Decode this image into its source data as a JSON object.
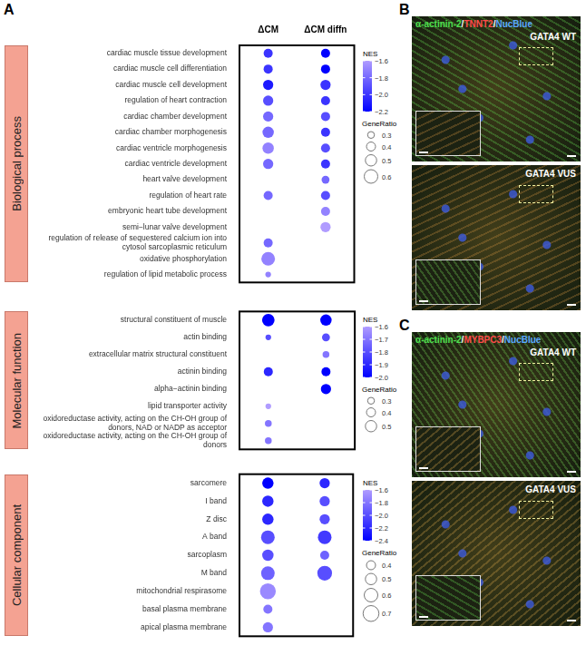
{
  "panel_a": {
    "letter": "A"
  },
  "chart_data": [
    {
      "type": "bubble",
      "title": "Biological process",
      "categories": [
        "cardiac muscle tissue development",
        "cardiac muscle cell differentiation",
        "cardiac muscle cell development",
        "regulation of heart contraction",
        "cardiac chamber development",
        "cardiac chamber morphogenesis",
        "cardiac ventricle morphogenesis",
        "cardiac ventricle development",
        "heart valve development",
        "regulation of heart rate",
        "embryonic heart tube development",
        "semi−lunar valve development",
        "regulation of release of sequestered calcium ion into cytosol sarcoplasmic reticulum",
        "oxidative phosphorylation",
        "regulation of lipid metabolic process"
      ],
      "series": [
        {
          "name": "ΔCM",
          "values": [
            -2.0,
            -2.0,
            -2.1,
            -1.9,
            -1.8,
            -1.8,
            -1.7,
            -1.8,
            null,
            -1.8,
            null,
            null,
            -1.8,
            -1.7,
            -1.7
          ],
          "gene_ratio": [
            0.4,
            0.4,
            0.45,
            0.45,
            0.45,
            0.5,
            0.5,
            0.45,
            null,
            0.4,
            null,
            null,
            0.4,
            0.6,
            0.25
          ]
        },
        {
          "name": "ΔCM diffn",
          "values": [
            -2.2,
            -2.2,
            -2.0,
            -2.0,
            -1.9,
            -2.0,
            -1.9,
            -2.0,
            -1.8,
            -1.9,
            -1.7,
            -1.6,
            null,
            null,
            null
          ],
          "gene_ratio": [
            0.4,
            0.4,
            0.45,
            0.4,
            0.4,
            0.4,
            0.4,
            0.4,
            0.35,
            0.4,
            0.4,
            0.45,
            null,
            null,
            null
          ]
        }
      ],
      "nes_colorbar": {
        "title": "NES",
        "range": [
          -2.2,
          -1.6
        ],
        "ticks": [
          {
            "value": -1.6,
            "label": "−1.6"
          },
          {
            "value": -1.8,
            "label": "−1.8"
          },
          {
            "value": -2.0,
            "label": "−2.0"
          },
          {
            "value": -2.2,
            "label": "−2.2"
          }
        ]
      },
      "gene_ratio_legend": {
        "title": "GeneRatio",
        "values": [
          0.3,
          0.4,
          0.5,
          0.6
        ]
      }
    },
    {
      "type": "bubble",
      "title": "Molecular function",
      "categories": [
        "structural constituent of muscle",
        "actin binding",
        "extracellular matrix structural constituent",
        "actinin binding",
        "alpha−actinin binding",
        "lipid transporter activity",
        "oxidoreductase activity, acting on the CH-OH group of donors, NAD or NADP as acceptor",
        "oxidoreductase activity, acting on the CH-OH group of donors"
      ],
      "series": [
        {
          "name": "ΔCM",
          "values": [
            -2.0,
            -1.8,
            null,
            -1.9,
            null,
            -1.6,
            -1.7,
            -1.7
          ],
          "gene_ratio": [
            0.55,
            0.25,
            null,
            0.4,
            null,
            0.25,
            0.3,
            0.3
          ]
        },
        {
          "name": "ΔCM diffn",
          "values": [
            -2.0,
            -1.8,
            -1.7,
            -2.0,
            -2.0,
            null,
            null,
            null
          ],
          "gene_ratio": [
            0.5,
            0.35,
            0.3,
            0.4,
            0.45,
            null,
            null,
            null
          ]
        }
      ],
      "nes_colorbar": {
        "title": "NES",
        "range": [
          -2.0,
          -1.6
        ],
        "ticks": [
          {
            "value": -1.6,
            "label": "−1.6"
          },
          {
            "value": -1.7,
            "label": "−1.7"
          },
          {
            "value": -1.8,
            "label": "−1.8"
          },
          {
            "value": -1.9,
            "label": "−1.9"
          },
          {
            "value": -2.0,
            "label": "−2.0"
          }
        ]
      },
      "gene_ratio_legend": {
        "title": "GeneRatio",
        "values": [
          0.3,
          0.4,
          0.5
        ]
      }
    },
    {
      "type": "bubble",
      "title": "Cellular component",
      "categories": [
        "sarcomere",
        "I band",
        "Z disc",
        "A band",
        "sarcoplasm",
        "M band",
        "mitochondrial respirasome",
        "basal plasma membrane",
        "apical plasma membrane"
      ],
      "series": [
        {
          "name": "ΔCM",
          "values": [
            -2.4,
            -2.2,
            -2.2,
            -2.0,
            -2.0,
            -1.9,
            -1.7,
            -1.8,
            -1.8
          ],
          "gene_ratio": [
            0.5,
            0.5,
            0.5,
            0.6,
            0.5,
            0.6,
            0.7,
            0.4,
            0.45
          ]
        },
        {
          "name": "ΔCM diffn",
          "values": [
            -2.2,
            -2.0,
            -2.0,
            -2.1,
            -1.9,
            -2.0,
            null,
            null,
            null
          ],
          "gene_ratio": [
            0.45,
            0.45,
            0.45,
            0.6,
            0.4,
            0.65,
            null,
            null,
            null
          ]
        }
      ],
      "nes_colorbar": {
        "title": "NES",
        "range": [
          -2.4,
          -1.6
        ],
        "ticks": [
          {
            "value": -1.6,
            "label": "−1.6"
          },
          {
            "value": -1.8,
            "label": "−1.8"
          },
          {
            "value": -2.0,
            "label": "−2.0"
          },
          {
            "value": -2.2,
            "label": "−2.2"
          },
          {
            "value": -2.4,
            "label": "−2.4"
          }
        ]
      },
      "gene_ratio_legend": {
        "title": "GeneRatio",
        "values": [
          0.4,
          0.5,
          0.6,
          0.7
        ]
      }
    }
  ],
  "images": [
    {
      "letter": "B",
      "stains": [
        {
          "text": "α-actinin-2",
          "color": "#4fe04f"
        },
        {
          "text": "TNNT2",
          "color": "#ff4a4a"
        },
        {
          "text": "NucBlue",
          "color": "#5aa8ff"
        }
      ],
      "separator": "/",
      "samples": [
        "GATA4 WT",
        "GATA4 VUS"
      ]
    },
    {
      "letter": "C",
      "stains": [
        {
          "text": "α-actinin-2",
          "color": "#4fe04f"
        },
        {
          "text": "MYBPC3",
          "color": "#ff4a4a"
        },
        {
          "text": "NucBlue",
          "color": "#5aa8ff"
        }
      ],
      "separator": "/",
      "samples": [
        "GATA4 WT",
        "GATA4 VUS"
      ]
    }
  ]
}
